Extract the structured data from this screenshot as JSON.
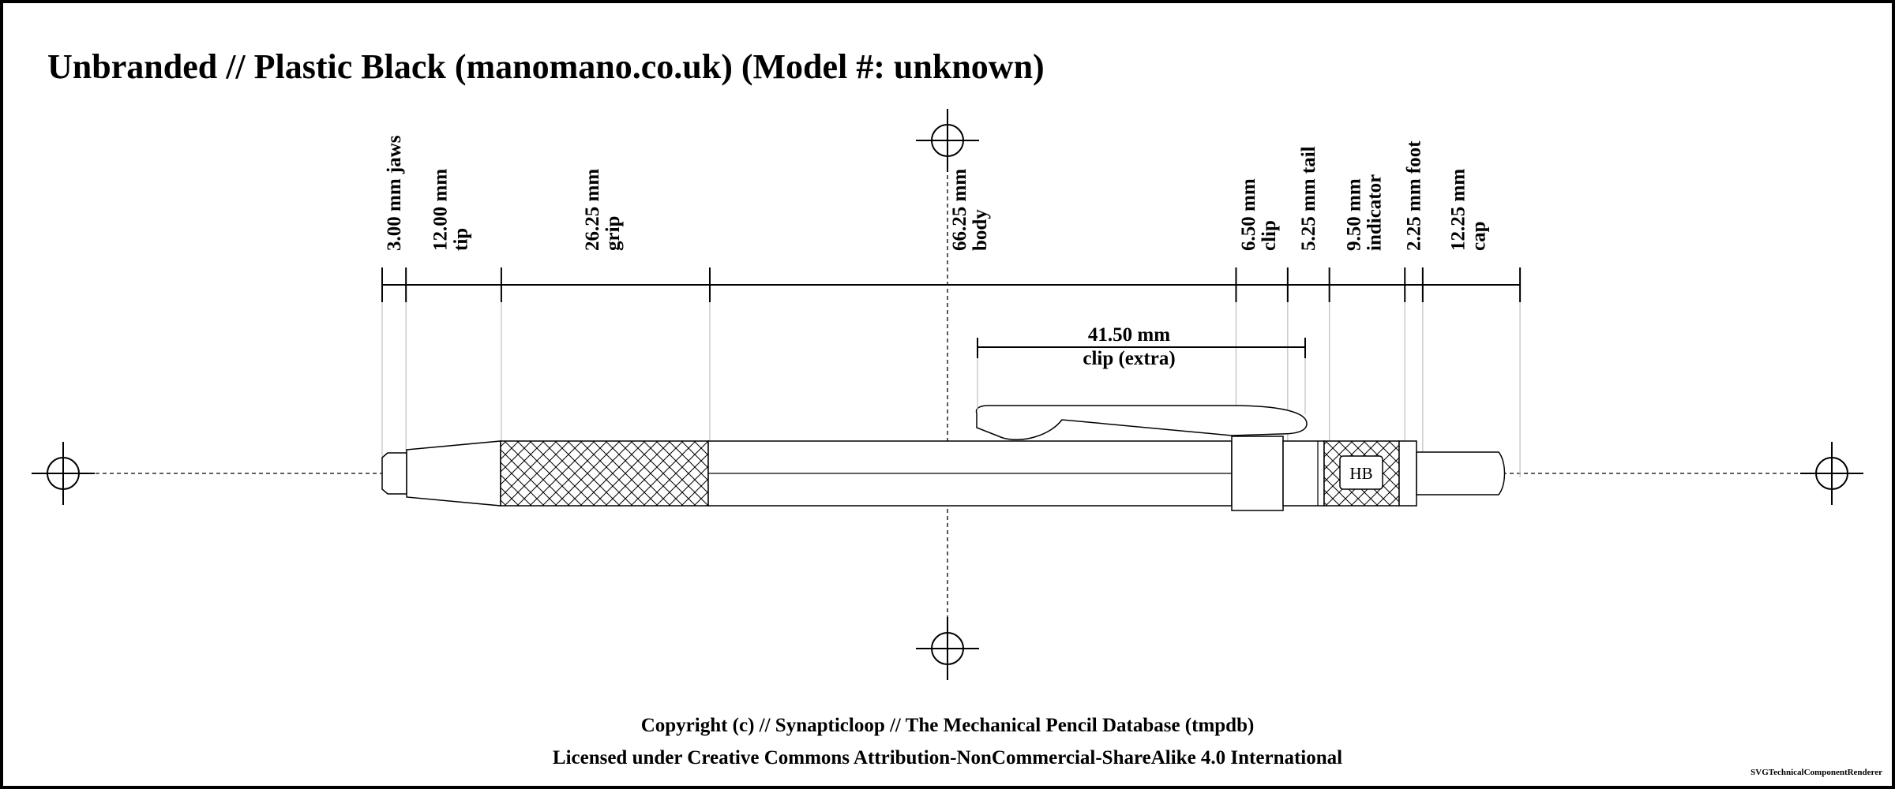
{
  "title": "Unbranded // Plastic Black (manomano.co.uk) (Model #: unknown)",
  "colors": {
    "line": "#000000",
    "body": "#ffffff",
    "extension": "#bfbfbf"
  },
  "components": [
    {
      "id": "jaws",
      "length_mm": 3.0,
      "line1": "3.00 mm jaws",
      "line2": ""
    },
    {
      "id": "tip",
      "length_mm": 12.0,
      "line1": "12.00 mm",
      "line2": "tip"
    },
    {
      "id": "grip",
      "length_mm": 26.25,
      "line1": "26.25 mm",
      "line2": "grip"
    },
    {
      "id": "body",
      "length_mm": 66.25,
      "line1": "66.25 mm",
      "line2": "body"
    },
    {
      "id": "clip",
      "length_mm": 6.5,
      "line1": "6.50 mm",
      "line2": "clip"
    },
    {
      "id": "tail",
      "length_mm": 5.25,
      "line1": "5.25 mm tail",
      "line2": ""
    },
    {
      "id": "indicator",
      "length_mm": 9.5,
      "line1": "9.50 mm",
      "line2": "indicator"
    },
    {
      "id": "foot",
      "length_mm": 2.25,
      "line1": "2.25 mm foot",
      "line2": ""
    },
    {
      "id": "cap",
      "length_mm": 12.25,
      "line1": "12.25 mm",
      "line2": "cap"
    }
  ],
  "clip_extra": {
    "length_mm": 41.5,
    "line1": "41.50 mm",
    "line2": "clip (extra)"
  },
  "indicator_badge": "HB",
  "footer": {
    "copyright": "Copyright (c) // Synapticloop // The Mechanical Pencil Database (tmpdb)",
    "license": "Licensed under Creative Commons Attribution-NonCommercial-ShareAlike 4.0 International"
  },
  "renderer": "SVGTechnicalComponentRenderer"
}
